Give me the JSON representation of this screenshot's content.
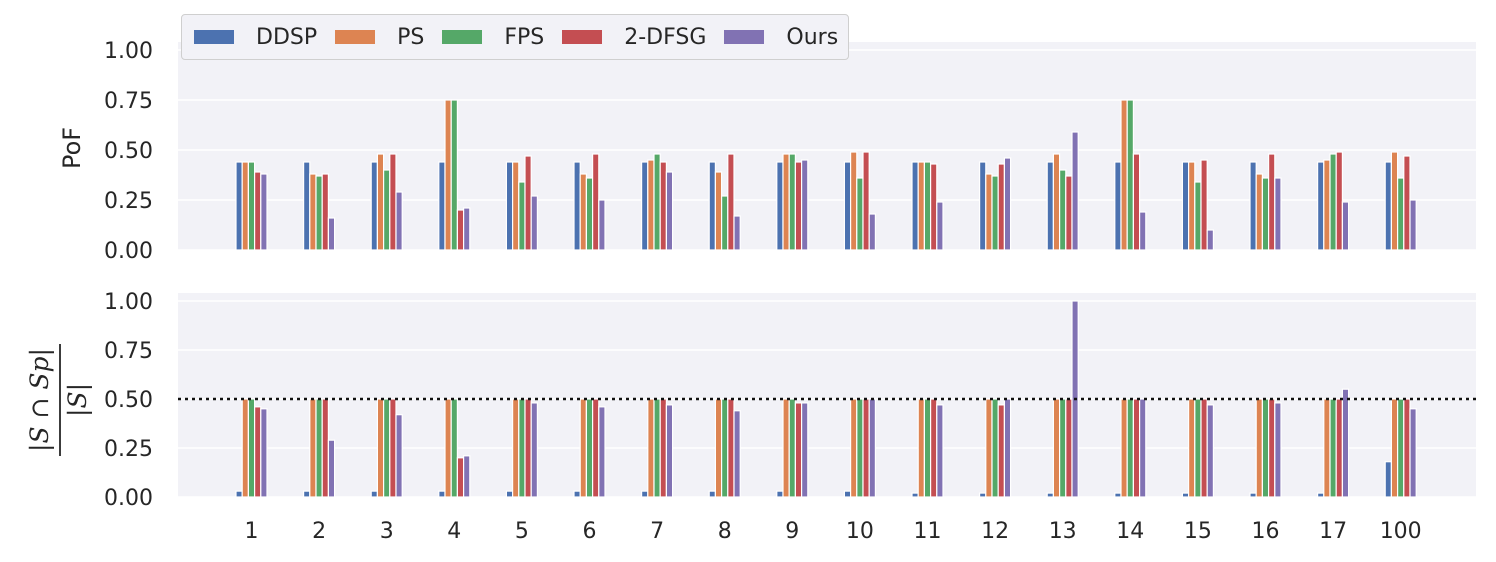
{
  "colors": {
    "DDSP": "#4c72b0",
    "PS": "#dd8452",
    "FPS": "#55a868",
    "2-DFSG": "#c44e52",
    "Ours": "#8172b3",
    "plot_bg": "#eaeaf2",
    "grid": "#ffffff",
    "text": "#262626"
  },
  "legend": [
    "DDSP",
    "PS",
    "FPS",
    "2-DFSG",
    "Ours"
  ],
  "chart_data": [
    {
      "type": "bar",
      "ylabel": "PoF",
      "ylim": [
        0,
        1.0
      ],
      "yticks": [
        "0.00",
        "0.25",
        "0.50",
        "0.75",
        "1.00"
      ],
      "categories": [
        "1",
        "2",
        "3",
        "4",
        "5",
        "6",
        "7",
        "8",
        "9",
        "10",
        "11",
        "12",
        "13",
        "14",
        "15",
        "16",
        "17",
        "100"
      ],
      "series": [
        {
          "name": "DDSP",
          "values": [
            0.44,
            0.44,
            0.44,
            0.44,
            0.44,
            0.44,
            0.44,
            0.44,
            0.44,
            0.44,
            0.44,
            0.44,
            0.44,
            0.44,
            0.44,
            0.44,
            0.44,
            0.44
          ]
        },
        {
          "name": "PS",
          "values": [
            0.44,
            0.38,
            0.48,
            0.75,
            0.44,
            0.38,
            0.45,
            0.39,
            0.48,
            0.49,
            0.44,
            0.38,
            0.48,
            0.75,
            0.44,
            0.38,
            0.45,
            0.49
          ]
        },
        {
          "name": "FPS",
          "values": [
            0.44,
            0.37,
            0.4,
            0.75,
            0.34,
            0.36,
            0.48,
            0.27,
            0.48,
            0.36,
            0.44,
            0.37,
            0.4,
            0.75,
            0.34,
            0.36,
            0.48,
            0.36
          ]
        },
        {
          "name": "2-DFSG",
          "values": [
            0.39,
            0.38,
            0.48,
            0.2,
            0.47,
            0.48,
            0.44,
            0.48,
            0.44,
            0.49,
            0.43,
            0.43,
            0.37,
            0.48,
            0.45,
            0.48,
            0.49,
            0.47
          ]
        },
        {
          "name": "Ours",
          "values": [
            0.38,
            0.16,
            0.29,
            0.21,
            0.27,
            0.25,
            0.39,
            0.17,
            0.45,
            0.18,
            0.24,
            0.46,
            0.59,
            0.19,
            0.1,
            0.36,
            0.24,
            0.25
          ]
        }
      ]
    },
    {
      "type": "bar",
      "ylabel": "|S ∩ Sp| / |S|",
      "ylim": [
        0,
        1.0
      ],
      "yticks": [
        "0.00",
        "0.25",
        "0.50",
        "0.75",
        "1.00"
      ],
      "reference_line": 0.5,
      "categories": [
        "1",
        "2",
        "3",
        "4",
        "5",
        "6",
        "7",
        "8",
        "9",
        "10",
        "11",
        "12",
        "13",
        "14",
        "15",
        "16",
        "17",
        "100"
      ],
      "series": [
        {
          "name": "DDSP",
          "values": [
            0.03,
            0.03,
            0.03,
            0.03,
            0.03,
            0.03,
            0.03,
            0.03,
            0.03,
            0.03,
            0.02,
            0.02,
            0.02,
            0.02,
            0.02,
            0.02,
            0.02,
            0.18
          ]
        },
        {
          "name": "PS",
          "values": [
            0.5,
            0.5,
            0.5,
            0.5,
            0.5,
            0.5,
            0.5,
            0.5,
            0.5,
            0.5,
            0.5,
            0.5,
            0.5,
            0.5,
            0.5,
            0.5,
            0.5,
            0.5
          ]
        },
        {
          "name": "FPS",
          "values": [
            0.5,
            0.5,
            0.5,
            0.5,
            0.5,
            0.5,
            0.5,
            0.5,
            0.5,
            0.5,
            0.5,
            0.5,
            0.5,
            0.5,
            0.5,
            0.5,
            0.5,
            0.5
          ]
        },
        {
          "name": "2-DFSG",
          "values": [
            0.46,
            0.5,
            0.5,
            0.2,
            0.5,
            0.5,
            0.5,
            0.5,
            0.48,
            0.5,
            0.5,
            0.47,
            0.5,
            0.5,
            0.5,
            0.5,
            0.5,
            0.5
          ]
        },
        {
          "name": "Ours",
          "values": [
            0.45,
            0.29,
            0.42,
            0.21,
            0.48,
            0.46,
            0.47,
            0.44,
            0.48,
            0.5,
            0.47,
            0.5,
            1.0,
            0.5,
            0.47,
            0.48,
            0.55,
            0.45
          ]
        }
      ]
    }
  ]
}
